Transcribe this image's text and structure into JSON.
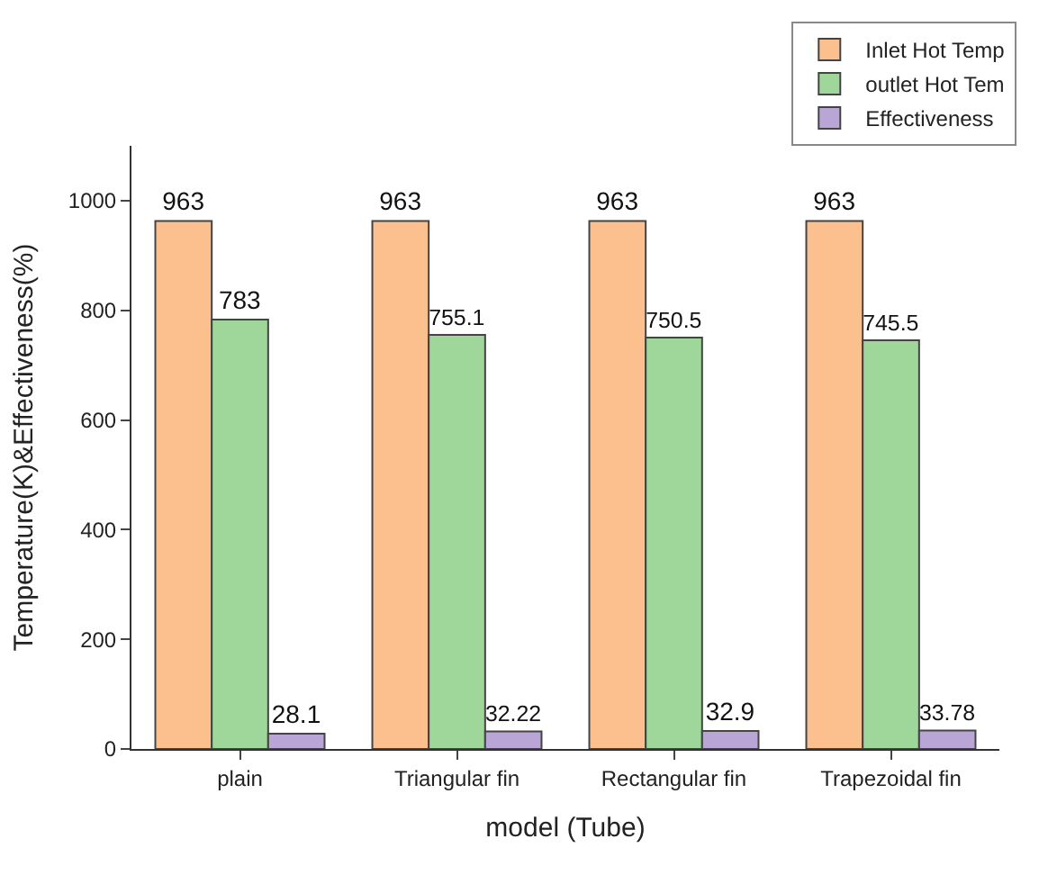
{
  "chart_data": {
    "type": "bar",
    "xlabel": "model (Tube)",
    "ylabel": "Temperature(K)&Effectiveness(%)",
    "categories": [
      "plain",
      "Triangular fin",
      "Rectangular fin",
      "Trapezoidal fin"
    ],
    "series": [
      {
        "name": "Inlet Hot Temp",
        "color": "#fbc08e",
        "values": [
          963,
          963,
          963,
          963
        ]
      },
      {
        "name": "outlet Hot Tem",
        "color": "#9fd69a",
        "values": [
          783,
          755.1,
          750.5,
          745.5
        ]
      },
      {
        "name": "Effectiveness",
        "color": "#b9a6d6",
        "values": [
          28.1,
          32.22,
          32.9,
          33.78
        ]
      }
    ],
    "ylim": [
      0,
      1100
    ],
    "yticks": [
      0,
      200,
      400,
      600,
      800,
      1000
    ],
    "data_labels": true,
    "legend": "top right"
  }
}
